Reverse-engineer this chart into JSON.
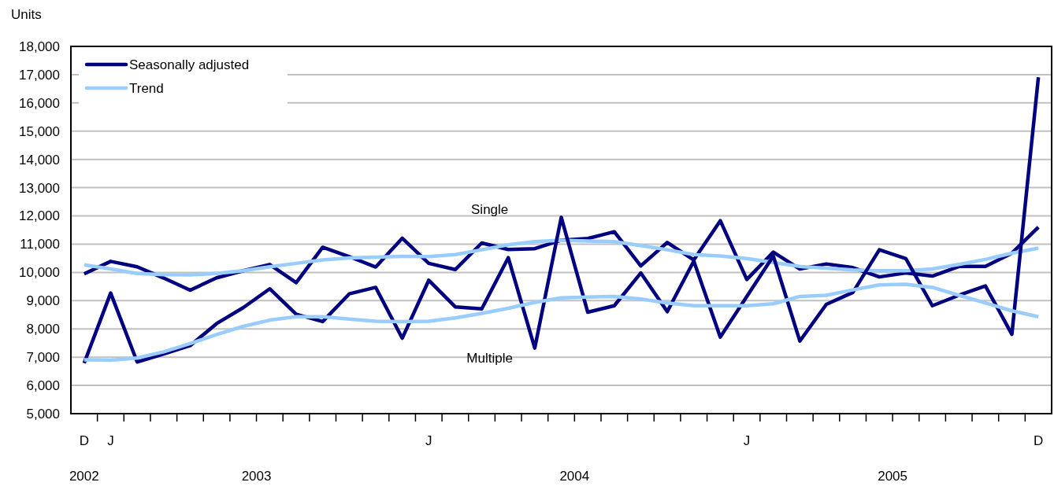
{
  "chart_data": {
    "type": "line",
    "ylabel": "Units",
    "categories": [
      "D",
      "J",
      null,
      null,
      null,
      null,
      null,
      null,
      null,
      null,
      null,
      null,
      null,
      "J",
      null,
      null,
      null,
      null,
      null,
      null,
      null,
      null,
      null,
      null,
      null,
      "J",
      null,
      null,
      null,
      null,
      null,
      null,
      null,
      null,
      null,
      null,
      "D"
    ],
    "series": [
      {
        "name": "Seasonally adjusted",
        "color": "#000080",
        "values": [
          9950,
          10390,
          10200,
          9800,
          9370,
          9810,
          10060,
          10280,
          9640,
          10890,
          10560,
          10190,
          11210,
          10320,
          10100,
          11040,
          10810,
          10840,
          11140,
          11200,
          11440,
          10230,
          11060,
          10440,
          11830,
          9750,
          10720,
          10120,
          10300,
          10170,
          9840,
          9980,
          9870,
          10210,
          10210,
          10680,
          11600
        ]
      },
      {
        "name": "Trend",
        "color": "#99ccff",
        "values": [
          10270,
          10120,
          9960,
          9920,
          9910,
          9960,
          10060,
          10200,
          10320,
          10440,
          10510,
          10540,
          10570,
          10560,
          10630,
          10800,
          10980,
          11090,
          11140,
          11110,
          11090,
          10950,
          10800,
          10630,
          10580,
          10490,
          10350,
          10210,
          10150,
          10090,
          10060,
          10060,
          10120,
          10280,
          10460,
          10680,
          10860
        ]
      },
      {
        "color": "#000080",
        "values": [
          6790,
          9270,
          6830,
          7110,
          7410,
          8190,
          8750,
          9420,
          8520,
          8260,
          9240,
          9470,
          7670,
          9720,
          8780,
          8710,
          10520,
          7320,
          11950,
          8590,
          8820,
          9980,
          8610,
          10400,
          7710,
          9150,
          10580,
          7570,
          8870,
          9290,
          10800,
          10490,
          8820,
          9190,
          9520,
          7810,
          16910
        ]
      },
      {
        "color": "#99ccff",
        "values": [
          6910,
          6890,
          6970,
          7190,
          7480,
          7800,
          8090,
          8310,
          8430,
          8430,
          8350,
          8270,
          8260,
          8270,
          8390,
          8550,
          8730,
          8940,
          9100,
          9130,
          9150,
          9060,
          8920,
          8820,
          8820,
          8820,
          8890,
          9150,
          9190,
          9380,
          9560,
          9580,
          9470,
          9190,
          8920,
          8640,
          8430
        ]
      }
    ],
    "ylim": [
      5000,
      18000
    ],
    "yticks": [
      {
        "value": 5000,
        "label": "5,000"
      },
      {
        "value": 6000,
        "label": "6,000"
      },
      {
        "value": 7000,
        "label": "7,000"
      },
      {
        "value": 8000,
        "label": "8,000"
      },
      {
        "value": 9000,
        "label": "9,000"
      },
      {
        "value": 10000,
        "label": "10,000"
      },
      {
        "value": 11000,
        "label": "11,000"
      },
      {
        "value": 12000,
        "label": "12,000"
      },
      {
        "value": 13000,
        "label": "13,000"
      },
      {
        "value": 14000,
        "label": "14,000"
      },
      {
        "value": 15000,
        "label": "15,000"
      },
      {
        "value": 16000,
        "label": "16,000"
      },
      {
        "value": 17000,
        "label": "17,000"
      },
      {
        "value": 18000,
        "label": "18,000"
      }
    ],
    "grid": "y",
    "legend": "top left",
    "annotations": [
      "Single",
      "Multiple",
      "2002",
      "2003",
      "2004",
      "2005"
    ]
  }
}
